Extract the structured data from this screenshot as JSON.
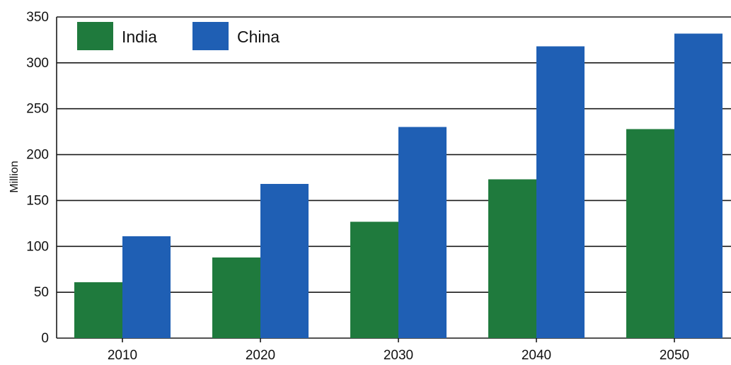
{
  "chart_data": {
    "type": "bar",
    "categories": [
      "2010",
      "2020",
      "2030",
      "2040",
      "2050"
    ],
    "series": [
      {
        "name": "India",
        "color": "#1f7a3d",
        "values": [
          61,
          88,
          127,
          173,
          228
        ]
      },
      {
        "name": "China",
        "color": "#1f5fb4",
        "values": [
          111,
          168,
          230,
          318,
          332
        ]
      }
    ],
    "ylabel": "Million",
    "ylim": [
      0,
      350
    ],
    "yticks": [
      0,
      50,
      100,
      150,
      200,
      250,
      300,
      350
    ],
    "grid": true,
    "legend": "top-left"
  }
}
